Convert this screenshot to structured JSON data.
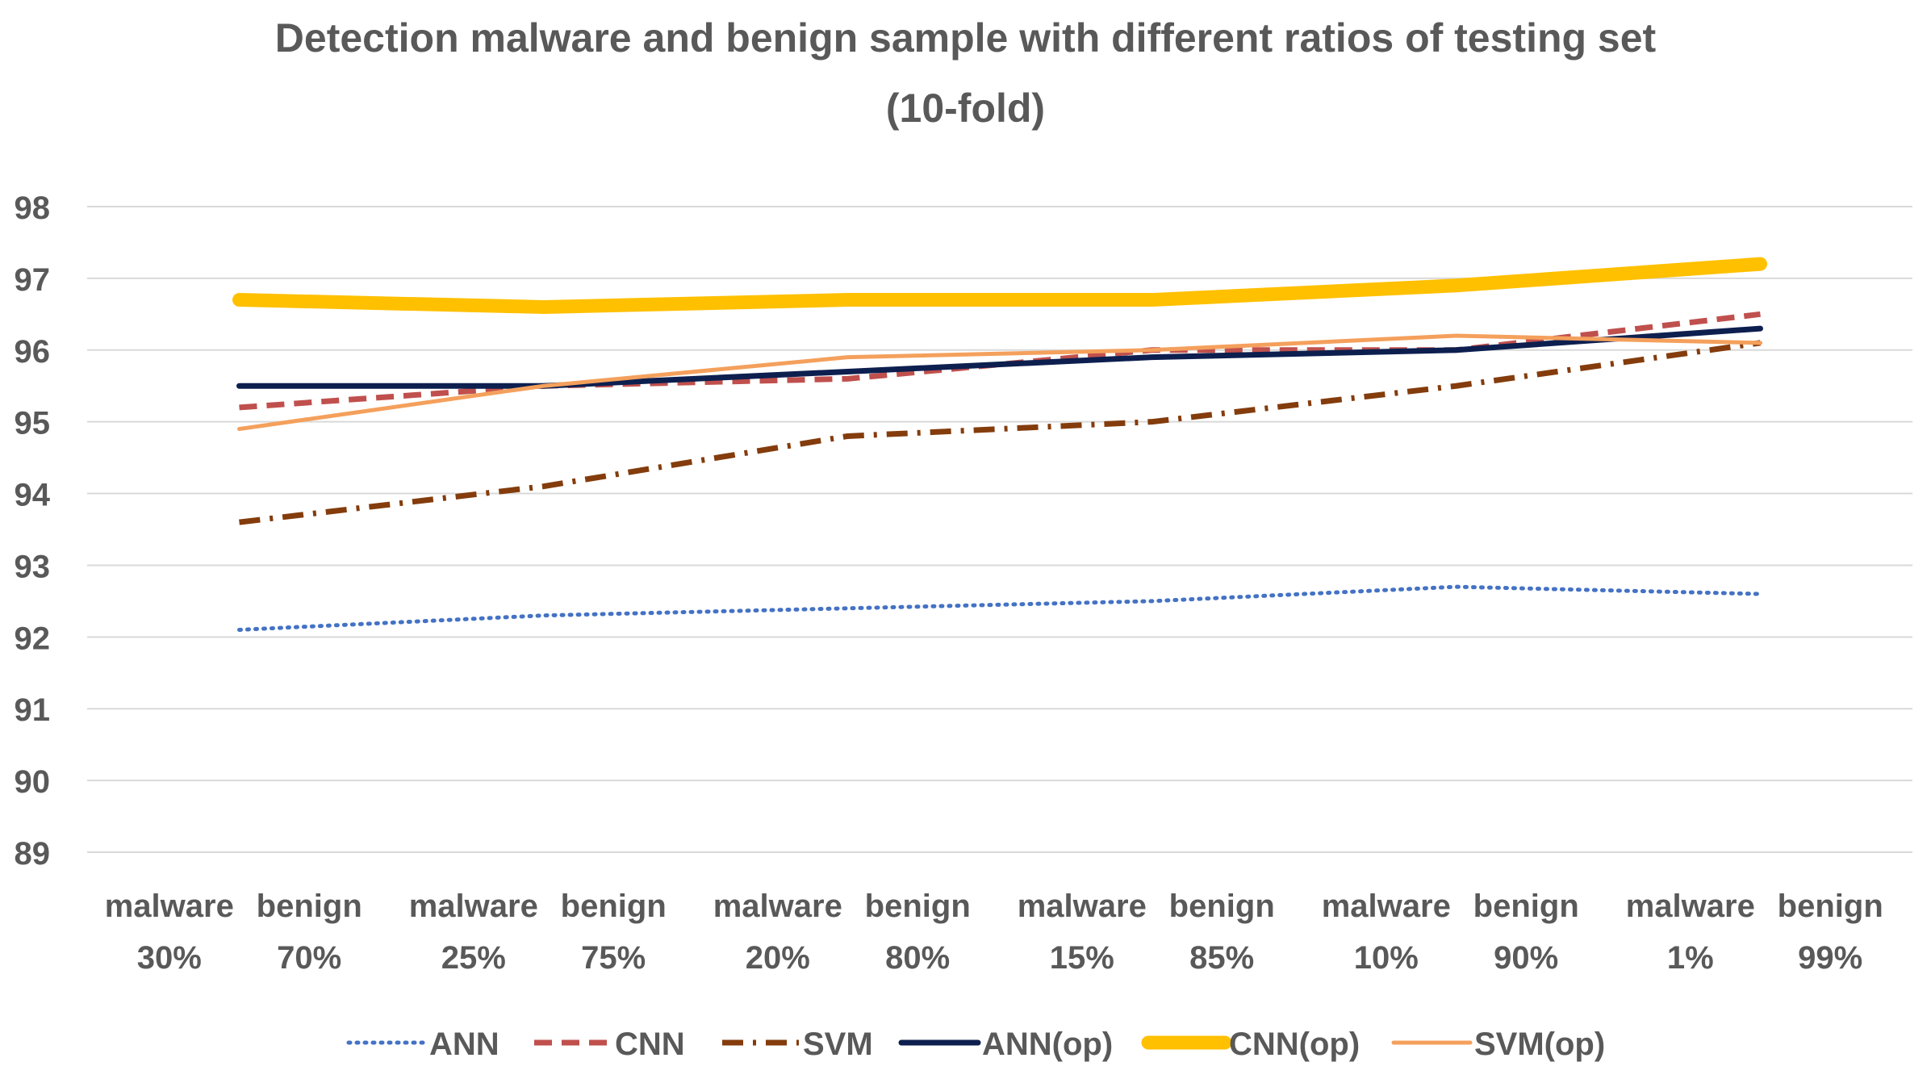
{
  "chart_data": {
    "type": "line",
    "title": "Detection malware and benign sample with different ratios of testing set",
    "subtitle": "(10-fold)",
    "categories": [
      [
        "malware",
        "30%",
        "benign",
        "70%"
      ],
      [
        "malware",
        "25%",
        "benign",
        "75%"
      ],
      [
        "malware",
        "20%",
        "benign",
        "80%"
      ],
      [
        "malware",
        "15%",
        "benign",
        "85%"
      ],
      [
        "malware",
        "10%",
        "benign",
        "90%"
      ],
      [
        "malware",
        "1%",
        "benign",
        "99%"
      ]
    ],
    "ylim": [
      89,
      98
    ],
    "yticks": [
      "89",
      "90",
      "91",
      "92",
      "93",
      "94",
      "95",
      "96",
      "97",
      "98"
    ],
    "grid": true,
    "legend_position": "bottom",
    "series": [
      {
        "name": "ANN",
        "color": "#4472C4",
        "style": "dotted",
        "values": [
          92.1,
          92.3,
          92.4,
          92.5,
          92.7,
          92.6
        ]
      },
      {
        "name": "CNN",
        "color": "#C0504D",
        "style": "dashed",
        "values": [
          95.2,
          95.5,
          95.6,
          96.0,
          96.0,
          96.5
        ]
      },
      {
        "name": "SVM",
        "color": "#843C0C",
        "style": "dashdot",
        "values": [
          93.6,
          94.1,
          94.8,
          95.0,
          95.5,
          96.1
        ]
      },
      {
        "name": "ANN(op)",
        "color": "#0D1F4F",
        "style": "solid",
        "values": [
          95.5,
          95.5,
          95.7,
          95.9,
          96.0,
          96.3
        ]
      },
      {
        "name": "CNN(op)",
        "color": "#FFC000",
        "style": "thick",
        "values": [
          96.7,
          96.6,
          96.7,
          96.7,
          96.9,
          97.2
        ]
      },
      {
        "name": "SVM(op)",
        "color": "#F4A05C",
        "style": "solid",
        "values": [
          94.9,
          95.5,
          95.9,
          96.0,
          96.2,
          96.1
        ]
      }
    ]
  }
}
